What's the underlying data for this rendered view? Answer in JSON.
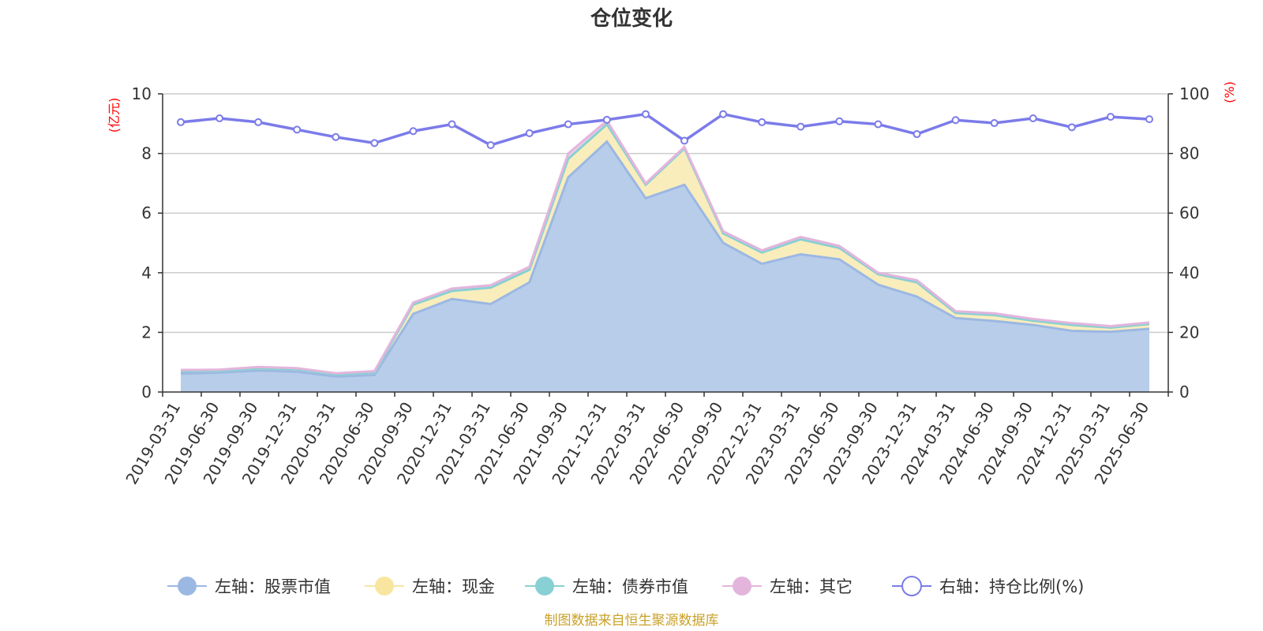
{
  "chart_data": {
    "type": "area",
    "title": "仓位变化",
    "left_unit": "(亿元)",
    "right_unit": "(%)",
    "categories": [
      "2019-03-31",
      "2019-06-30",
      "2019-09-30",
      "2019-12-31",
      "2020-03-31",
      "2020-06-30",
      "2020-09-30",
      "2020-12-31",
      "2021-03-31",
      "2021-06-30",
      "2021-09-30",
      "2021-12-31",
      "2022-03-31",
      "2022-06-30",
      "2022-09-30",
      "2022-12-31",
      "2023-03-31",
      "2023-06-30",
      "2023-09-30",
      "2023-12-31",
      "2024-03-31",
      "2024-06-30",
      "2024-09-30",
      "2024-12-31",
      "2025-03-31",
      "2025-06-30"
    ],
    "ylim_left": [
      0,
      10
    ],
    "yticks_left": [
      0,
      2,
      4,
      6,
      8,
      10
    ],
    "ylim_right": [
      0,
      100
    ],
    "yticks_right": [
      0,
      20,
      40,
      60,
      80,
      100
    ],
    "grid": true,
    "legend_position": "bottom",
    "series": [
      {
        "name": "左轴：股票市值",
        "axis": "left",
        "stack": true,
        "color": "#9bb8e3",
        "fill": "#b8cdea",
        "values": [
          0.62,
          0.65,
          0.72,
          0.68,
          0.52,
          0.57,
          2.62,
          3.12,
          2.95,
          3.68,
          7.2,
          8.4,
          6.5,
          6.95,
          5.0,
          4.3,
          4.62,
          4.45,
          3.6,
          3.2,
          2.48,
          2.38,
          2.25,
          2.05,
          2.02,
          2.12
        ]
      },
      {
        "name": "左轴：现金",
        "axis": "left",
        "stack": true,
        "color": "#f8e6a0",
        "fill": "#faedbc",
        "values": [
          0.08,
          0.06,
          0.07,
          0.08,
          0.07,
          0.08,
          0.31,
          0.27,
          0.55,
          0.42,
          0.62,
          0.58,
          0.45,
          1.22,
          0.32,
          0.38,
          0.5,
          0.38,
          0.35,
          0.48,
          0.17,
          0.2,
          0.14,
          0.2,
          0.14,
          0.16
        ]
      },
      {
        "name": "左轴：债券市值",
        "axis": "left",
        "stack": true,
        "color": "#88d0d4",
        "fill": "#a6dcde",
        "values": [
          0,
          0,
          0,
          0,
          0,
          0,
          0,
          0,
          0,
          0,
          0,
          0,
          0,
          0,
          0,
          0,
          0,
          0,
          0,
          0,
          0,
          0,
          0,
          0,
          0,
          0
        ]
      },
      {
        "name": "左轴：其它",
        "axis": "left",
        "stack": true,
        "color": "#e3b5dc",
        "fill": "#efcfe9",
        "values": [
          0.04,
          0.04,
          0.05,
          0.04,
          0.04,
          0.05,
          0.07,
          0.08,
          0.08,
          0.1,
          0.18,
          0.12,
          0.05,
          0.05,
          0.07,
          0.07,
          0.08,
          0.07,
          0.05,
          0.07,
          0.06,
          0.06,
          0.06,
          0.06,
          0.05,
          0.05
        ]
      },
      {
        "name": "右轴：持仓比例(%)",
        "axis": "right",
        "type": "line",
        "color": "#7b7bea",
        "values": [
          90.5,
          91.8,
          90.5,
          88,
          85.5,
          83.5,
          87.5,
          89.8,
          82.8,
          86.8,
          89.8,
          91.3,
          93.2,
          84.3,
          93.2,
          90.5,
          89,
          90.8,
          89.8,
          86.5,
          91.2,
          90.2,
          91.8,
          88.8,
          92.3,
          91.5
        ]
      }
    ]
  },
  "footer": "制图数据来自恒生聚源数据库"
}
